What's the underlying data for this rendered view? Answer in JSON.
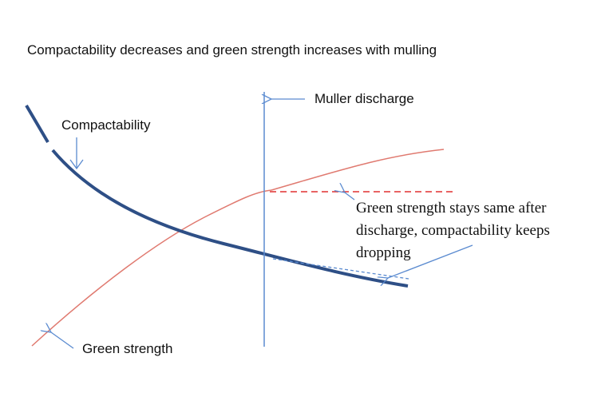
{
  "title": "Compactability decreases and green strength increases with mulling",
  "labels": {
    "compactability": "Compactability",
    "muller_discharge": "Muller discharge",
    "green_strength": "Green strength"
  },
  "annotation": [
    "Green strength stays same after",
    "discharge, compactability keeps",
    "dropping"
  ]
}
